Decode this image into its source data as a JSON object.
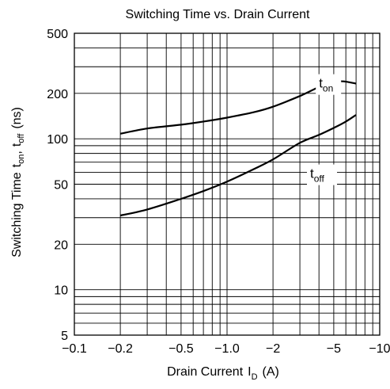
{
  "chart_data": {
    "type": "line",
    "title": "Switching Time vs. Drain Current",
    "xlabel": {
      "text": "Drain Current",
      "symbol": "I",
      "sub": "D",
      "unit": "(A)"
    },
    "ylabel": {
      "text": "Switching Time",
      "t1": "t",
      "s1": "on",
      "sep": ",",
      "t2": "t",
      "s2": "off",
      "unit": "(ns)"
    },
    "x_scale": "log",
    "y_scale": "log",
    "xlim": [
      -0.1,
      -10
    ],
    "ylim": [
      5,
      500
    ],
    "x_ticks": [
      {
        "value": -0.1,
        "label": "−0.1"
      },
      {
        "value": -0.2,
        "label": "−0.2"
      },
      {
        "value": -0.5,
        "label": "−0.5"
      },
      {
        "value": -1.0,
        "label": "−1.0"
      },
      {
        "value": -2,
        "label": "−2"
      },
      {
        "value": -5,
        "label": "−5"
      },
      {
        "value": -10,
        "label": "−10"
      }
    ],
    "y_ticks": [
      {
        "value": 5,
        "label": "5"
      },
      {
        "value": 10,
        "label": "10"
      },
      {
        "value": 20,
        "label": "20"
      },
      {
        "value": 50,
        "label": "50"
      },
      {
        "value": 100,
        "label": "100"
      },
      {
        "value": 200,
        "label": "200"
      },
      {
        "value": 500,
        "label": "500"
      }
    ],
    "grid": true,
    "series": [
      {
        "name": "t_on",
        "label_main": "t",
        "label_sub": "on",
        "label_at": [
          -4.0,
          218
        ],
        "x": [
          -0.2,
          -0.3,
          -0.5,
          -0.7,
          -1.0,
          -1.5,
          -2.0,
          -3.0,
          -4.0,
          -5.0,
          -5.8,
          -7.0
        ],
        "y": [
          108,
          117,
          124,
          130,
          138,
          150,
          163,
          192,
          220,
          238,
          240,
          232
        ]
      },
      {
        "name": "t_off",
        "label_main": "t",
        "label_sub": "off",
        "label_at": [
          -3.5,
          55
        ],
        "x": [
          -0.2,
          -0.3,
          -0.5,
          -0.7,
          -1.0,
          -1.5,
          -2.0,
          -3.0,
          -4.0,
          -5.0,
          -6.0,
          -7.0
        ],
        "y": [
          31,
          34,
          40,
          45,
          52,
          63,
          73,
          94,
          106,
          118,
          130,
          144
        ]
      }
    ]
  }
}
